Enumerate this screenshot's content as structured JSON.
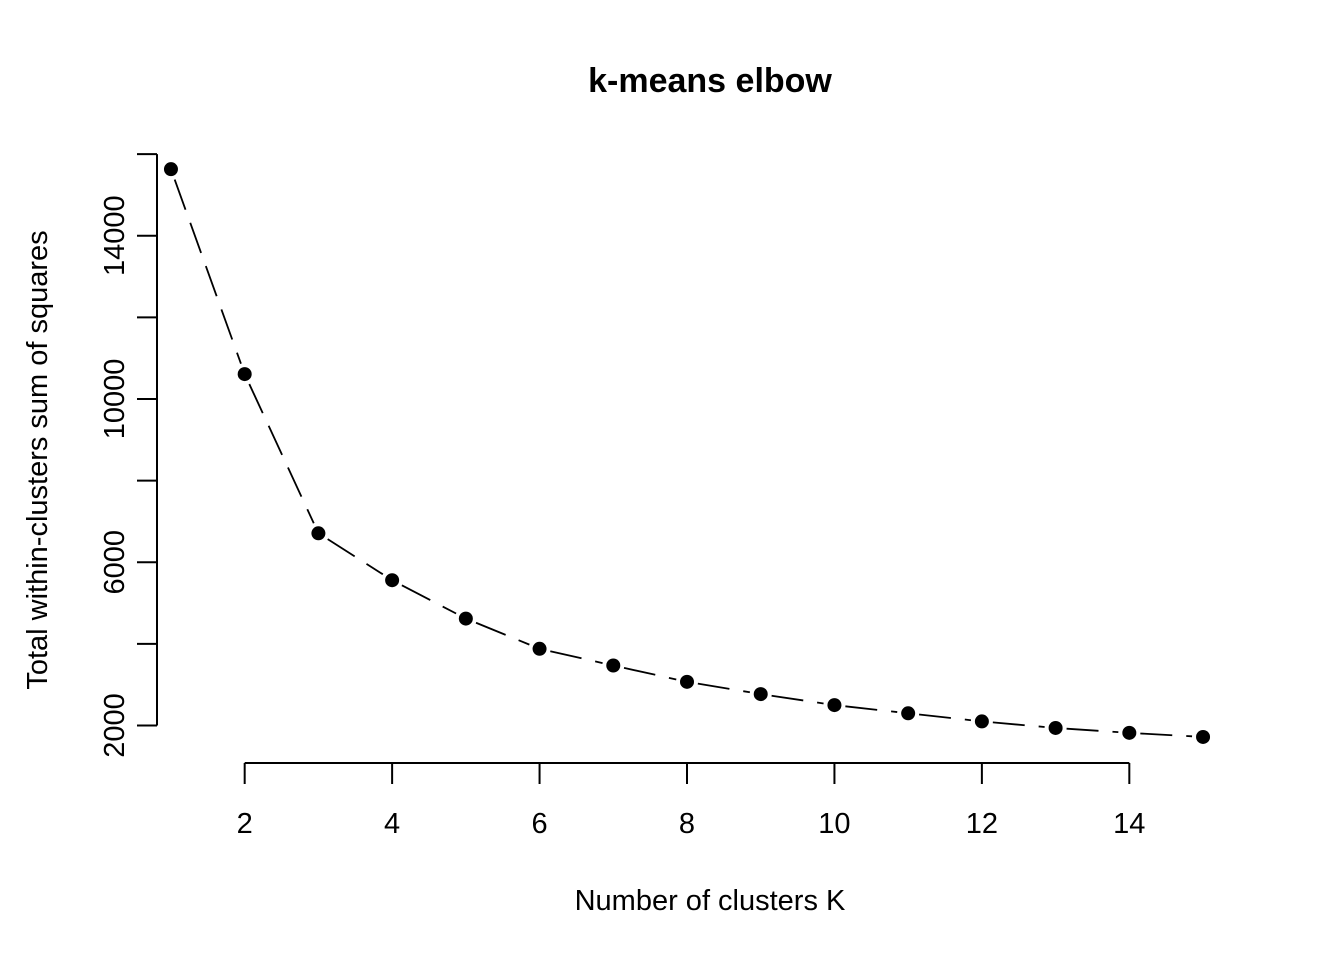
{
  "chart_data": {
    "type": "line",
    "title": "k-means elbow",
    "xlabel": "Number of clusters K",
    "ylabel": "Total within-clusters sum of squares",
    "x": [
      1,
      2,
      3,
      4,
      5,
      6,
      7,
      8,
      9,
      10,
      11,
      12,
      13,
      14,
      15
    ],
    "series": [
      {
        "values": [
          15630,
          10610,
          6710,
          5560,
          4620,
          3880,
          3470,
          3070,
          2770,
          2500,
          2300,
          2100,
          1940,
          1820,
          1720
        ]
      }
    ],
    "xticks": [
      2,
      4,
      6,
      8,
      10,
      12,
      14
    ],
    "yticks": [
      2000,
      6000,
      10000,
      14000
    ],
    "yminor_ticks": [
      4000,
      8000,
      12000,
      16000
    ],
    "xlim": [
      0.58,
      15.42
    ],
    "ylim": [
      1400,
      16100
    ],
    "grid": false,
    "line_style": "dashed",
    "marker": "filled-circle",
    "colors": {
      "line": "#000000",
      "marker": "#000000"
    }
  }
}
